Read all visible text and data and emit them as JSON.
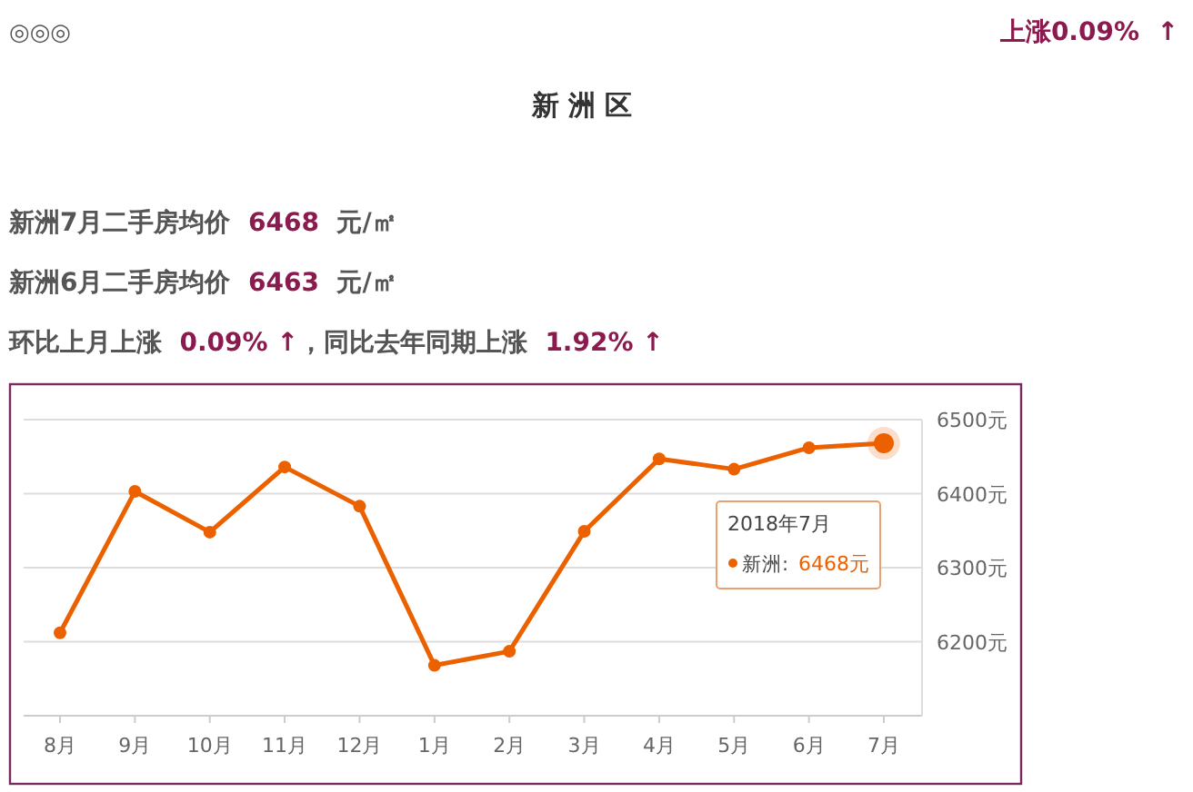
{
  "chart_data": {
    "type": "line",
    "title": "新 洲 区",
    "annotations": [
      "◎◎◎",
      "上涨0.09%  ↑",
      "新洲7月二手房均价  6468  元/㎡",
      "新洲6月二手房均价  6463  元/㎡",
      "环比上月上涨  0.09% ↑，同比去年同期上涨  1.92% ↑",
      "2018年7月",
      "6468元"
    ],
    "categories": [
      "8月",
      "9月",
      "10月",
      "11月",
      "12月",
      "1月",
      "2月",
      "3月",
      "4月",
      "5月",
      "6月",
      "7月"
    ],
    "series": [
      {
        "name": "新洲:",
        "color": "#eb6100",
        "values": [
          6212,
          6403,
          6348,
          6436,
          6383,
          6168,
          6187,
          6349,
          6447,
          6433,
          6462,
          6468
        ]
      }
    ],
    "ylim": [
      6100,
      6500
    ],
    "yticks": [
      {
        "value": 6100,
        "label": null
      },
      {
        "value": 6200,
        "label": "6200元"
      },
      {
        "value": 6300,
        "label": "6300元"
      },
      {
        "value": 6400,
        "label": "6400元"
      },
      {
        "value": 6500,
        "label": "6500元"
      }
    ],
    "grid": "y",
    "marker": "circle"
  }
}
